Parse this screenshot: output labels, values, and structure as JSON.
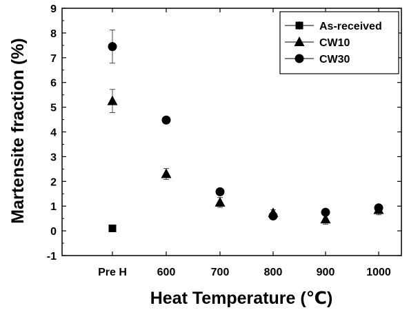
{
  "chart_data": {
    "type": "scatter",
    "xlabel": "Heat Temperature (℃)",
    "ylabel": "Martensite fraction (%)",
    "categories": [
      "Pre H",
      "600",
      "700",
      "800",
      "900",
      "1000"
    ],
    "ylim": [
      -1,
      9
    ],
    "y_ticks": [
      "-1",
      "0",
      "1",
      "2",
      "3",
      "4",
      "5",
      "6",
      "7",
      "8",
      "9"
    ],
    "grid": false,
    "legend_position": "top-right",
    "series": [
      {
        "name": "As-received",
        "marker": "square",
        "values": [
          0.1,
          null,
          null,
          null,
          null,
          null
        ],
        "errors": [
          0,
          null,
          null,
          null,
          null,
          null
        ]
      },
      {
        "name": "CW10",
        "marker": "triangle",
        "values": [
          5.25,
          2.3,
          1.15,
          0.72,
          0.47,
          0.85
        ],
        "errors": [
          0.47,
          0.22,
          0.2,
          0.13,
          0.2,
          0.2
        ]
      },
      {
        "name": "CW30",
        "marker": "circle",
        "values": [
          7.45,
          4.48,
          1.58,
          0.6,
          0.75,
          0.93
        ],
        "errors": [
          0.67,
          0,
          0.08,
          0.1,
          0.1,
          0.08
        ]
      }
    ]
  }
}
